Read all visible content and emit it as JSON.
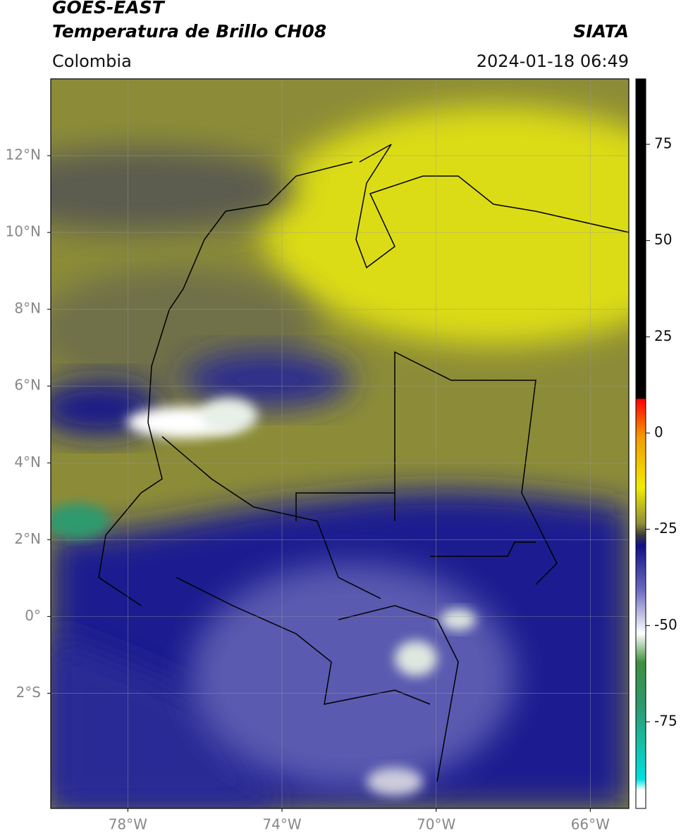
{
  "header": {
    "title": "GOES-EAST",
    "subtitle": "Temperatura de Brillo CH08",
    "source": "SIATA",
    "region": "Colombia",
    "datetime": "2024-01-18 06:49"
  },
  "map": {
    "xlim": [
      -80,
      -65
    ],
    "ylim": [
      -5,
      14
    ],
    "xticks": [
      {
        "value": -78,
        "label": "78°W"
      },
      {
        "value": -74,
        "label": "74°W"
      },
      {
        "value": -70,
        "label": "70°W"
      },
      {
        "value": -66,
        "label": "66°W"
      }
    ],
    "yticks": [
      {
        "value": 12,
        "label": "12°N"
      },
      {
        "value": 10,
        "label": "10°N"
      },
      {
        "value": 8,
        "label": "8°N"
      },
      {
        "value": 6,
        "label": "6°N"
      },
      {
        "value": 4,
        "label": "4°N"
      },
      {
        "value": 2,
        "label": "2°N"
      },
      {
        "value": 0,
        "label": "0°"
      },
      {
        "value": -2,
        "label": "2°S"
      }
    ],
    "grid": true
  },
  "colorbar": {
    "lim": [
      -97.5,
      92
    ],
    "ticks": [
      75,
      50,
      25,
      0,
      -25,
      -50,
      -75
    ]
  }
}
